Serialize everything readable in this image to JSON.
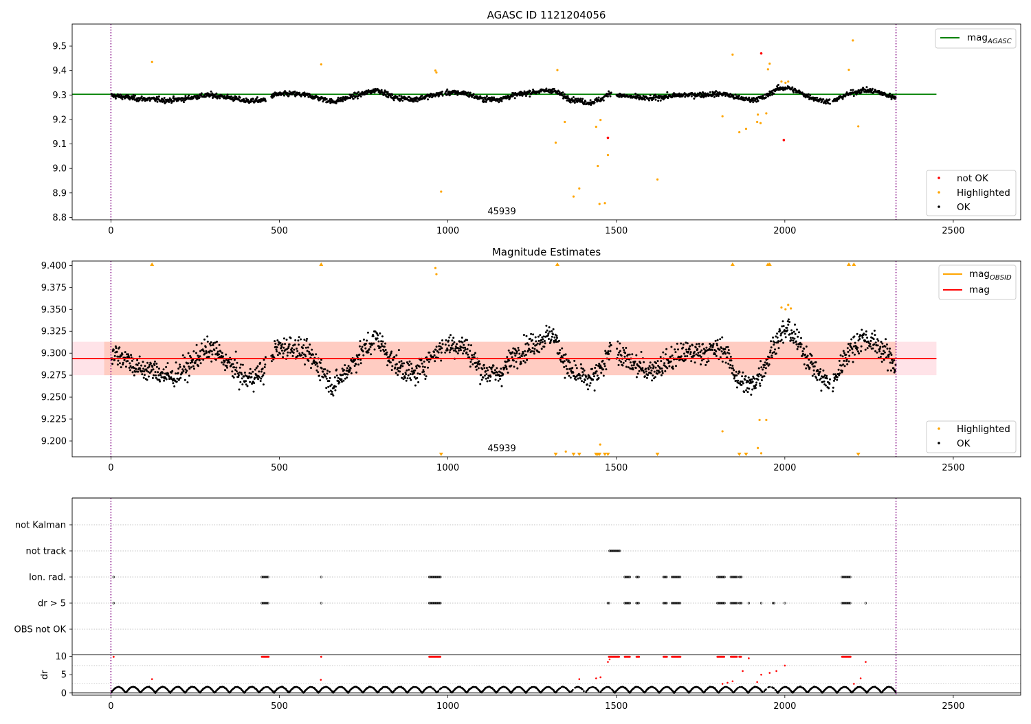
{
  "colors": {
    "ok": "#000000",
    "highlighted": "#ffa500",
    "not_ok": "#ff0000",
    "mag_agasc": "#008000",
    "mag_obsid": "#ffa500",
    "mag": "#ff0000",
    "obsid_boundary": "#800080",
    "band_pink": "#ffc0cb",
    "band_orange": "#ffa07a"
  },
  "obsid_label": "45939",
  "chart_data": [
    {
      "type": "scatter",
      "title": "AGASC ID 1121204056",
      "xlim": [
        -115,
        2700
      ],
      "ylim": [
        8.79,
        9.59
      ],
      "x_ticks": [
        0,
        500,
        1000,
        1500,
        2000,
        2500
      ],
      "y_ticks": [
        8.8,
        8.9,
        9.0,
        9.1,
        9.2,
        9.3,
        9.4,
        9.5
      ],
      "obsid_boundaries": [
        0,
        2330
      ],
      "hlines": [
        {
          "name": "mag_AGASC",
          "y": 9.303,
          "x": [
            -115,
            2450
          ],
          "color": "#008000"
        }
      ],
      "legend_lines": [
        {
          "base": "mag",
          "sub": "AGASC",
          "color": "#008000"
        }
      ],
      "legend_points": [
        {
          "label": "not OK",
          "color": "#ff0000"
        },
        {
          "label": "Highlighted",
          "color": "#ffa500"
        },
        {
          "label": "OK",
          "color": "#000000"
        }
      ],
      "annotation": "45939",
      "ok_trend": [
        [
          0,
          9.298
        ],
        [
          40,
          9.292
        ],
        [
          80,
          9.285
        ],
        [
          120,
          9.283
        ],
        [
          170,
          9.278
        ],
        [
          220,
          9.285
        ],
        [
          260,
          9.295
        ],
        [
          300,
          9.3
        ],
        [
          350,
          9.29
        ],
        [
          400,
          9.276
        ],
        [
          450,
          9.278
        ],
        [
          490,
          9.302
        ],
        [
          540,
          9.305
        ],
        [
          580,
          9.3
        ],
        [
          620,
          9.287
        ],
        [
          660,
          9.272
        ],
        [
          700,
          9.288
        ],
        [
          740,
          9.302
        ],
        [
          790,
          9.322
        ],
        [
          840,
          9.29
        ],
        [
          900,
          9.282
        ],
        [
          960,
          9.3
        ],
        [
          1000,
          9.31
        ],
        [
          1050,
          9.308
        ],
        [
          1100,
          9.284
        ],
        [
          1150,
          9.282
        ],
        [
          1200,
          9.3
        ],
        [
          1250,
          9.312
        ],
        [
          1310,
          9.32
        ],
        [
          1360,
          9.285
        ],
        [
          1420,
          9.268
        ],
        [
          1460,
          9.285
        ],
        [
          1480,
          9.31
        ],
        [
          1500,
          9.3
        ],
        [
          1560,
          9.29
        ],
        [
          1600,
          9.285
        ],
        [
          1650,
          9.295
        ],
        [
          1700,
          9.3
        ],
        [
          1760,
          9.302
        ],
        [
          1820,
          9.305
        ],
        [
          1860,
          9.288
        ],
        [
          1900,
          9.28
        ],
        [
          1940,
          9.29
        ],
        [
          1975,
          9.325
        ],
        [
          2010,
          9.33
        ],
        [
          2060,
          9.3
        ],
        [
          2100,
          9.28
        ],
        [
          2140,
          9.272
        ],
        [
          2180,
          9.3
        ],
        [
          2230,
          9.32
        ],
        [
          2270,
          9.315
        ],
        [
          2300,
          9.3
        ],
        [
          2330,
          9.29
        ]
      ],
      "highlighted_points": [
        [
          122,
          9.435
        ],
        [
          624,
          9.425
        ],
        [
          963,
          9.4
        ],
        [
          966,
          9.392
        ],
        [
          980,
          8.905
        ],
        [
          1320,
          9.105
        ],
        [
          1325,
          9.402
        ],
        [
          1347,
          9.19
        ],
        [
          1373,
          8.885
        ],
        [
          1390,
          8.918
        ],
        [
          1440,
          9.17
        ],
        [
          1445,
          9.01
        ],
        [
          1450,
          8.855
        ],
        [
          1453,
          9.198
        ],
        [
          1466,
          8.858
        ],
        [
          1475,
          9.055
        ],
        [
          1622,
          8.955
        ],
        [
          1815,
          9.213
        ],
        [
          1845,
          9.465
        ],
        [
          1865,
          9.148
        ],
        [
          1885,
          9.162
        ],
        [
          1918,
          9.19
        ],
        [
          1920,
          9.22
        ],
        [
          1928,
          9.185
        ],
        [
          1945,
          9.225
        ],
        [
          1950,
          9.405
        ],
        [
          1955,
          9.428
        ],
        [
          1990,
          9.355
        ],
        [
          2002,
          9.35
        ],
        [
          2010,
          9.355
        ],
        [
          2190,
          9.403
        ],
        [
          2202,
          9.523
        ],
        [
          2218,
          9.172
        ]
      ],
      "not_ok_points": [
        [
          1475,
          9.125
        ],
        [
          1930,
          9.47
        ],
        [
          1997,
          9.116
        ]
      ]
    },
    {
      "type": "scatter",
      "title": "Magnitude Estimates",
      "xlim": [
        -115,
        2700
      ],
      "ylim": [
        9.182,
        9.405
      ],
      "x_ticks": [
        0,
        500,
        1000,
        1500,
        2000,
        2500
      ],
      "y_ticks": [
        9.2,
        9.225,
        9.25,
        9.275,
        9.3,
        9.325,
        9.35,
        9.375,
        9.4
      ],
      "obsid_boundaries": [
        0,
        2330
      ],
      "hlines": [
        {
          "name": "mag",
          "y": 9.294,
          "x": [
            -115,
            2450
          ],
          "color": "#ff0000"
        }
      ],
      "bands": [
        {
          "y": [
            9.275,
            9.313
          ],
          "x": [
            -115,
            2450
          ],
          "color": "#ffc0cb"
        },
        {
          "y": [
            9.275,
            9.313
          ],
          "x": [
            -20,
            2330
          ],
          "color": "#ffa07a"
        }
      ],
      "legend_lines": [
        {
          "base": "mag",
          "sub": "OBSID",
          "color": "#ffa500"
        },
        {
          "base": "mag",
          "sub": "",
          "color": "#ff0000"
        }
      ],
      "legend_points": [
        {
          "label": "Highlighted",
          "color": "#ffa500"
        },
        {
          "label": "OK",
          "color": "#000000"
        }
      ],
      "annotation": "45939",
      "ok_trend": [
        [
          0,
          9.3
        ],
        [
          40,
          9.296
        ],
        [
          80,
          9.282
        ],
        [
          130,
          9.28
        ],
        [
          180,
          9.272
        ],
        [
          230,
          9.285
        ],
        [
          270,
          9.3
        ],
        [
          300,
          9.305
        ],
        [
          350,
          9.288
        ],
        [
          400,
          9.27
        ],
        [
          450,
          9.278
        ],
        [
          490,
          9.305
        ],
        [
          540,
          9.308
        ],
        [
          580,
          9.3
        ],
        [
          620,
          9.285
        ],
        [
          660,
          9.262
        ],
        [
          700,
          9.28
        ],
        [
          740,
          9.3
        ],
        [
          790,
          9.318
        ],
        [
          840,
          9.288
        ],
        [
          900,
          9.275
        ],
        [
          960,
          9.3
        ],
        [
          1000,
          9.31
        ],
        [
          1050,
          9.308
        ],
        [
          1100,
          9.28
        ],
        [
          1150,
          9.275
        ],
        [
          1200,
          9.298
        ],
        [
          1250,
          9.31
        ],
        [
          1310,
          9.322
        ],
        [
          1360,
          9.28
        ],
        [
          1420,
          9.268
        ],
        [
          1460,
          9.282
        ],
        [
          1480,
          9.31
        ],
        [
          1500,
          9.3
        ],
        [
          1560,
          9.285
        ],
        [
          1600,
          9.28
        ],
        [
          1650,
          9.29
        ],
        [
          1700,
          9.3
        ],
        [
          1760,
          9.302
        ],
        [
          1820,
          9.305
        ],
        [
          1860,
          9.27
        ],
        [
          1900,
          9.262
        ],
        [
          1940,
          9.285
        ],
        [
          1975,
          9.315
        ],
        [
          2010,
          9.328
        ],
        [
          2060,
          9.3
        ],
        [
          2100,
          9.275
        ],
        [
          2140,
          9.262
        ],
        [
          2180,
          9.298
        ],
        [
          2230,
          9.318
        ],
        [
          2270,
          9.31
        ],
        [
          2300,
          9.3
        ],
        [
          2330,
          9.285
        ]
      ],
      "highlighted_points": [
        [
          963,
          9.397
        ],
        [
          966,
          9.39
        ],
        [
          1350,
          9.188
        ],
        [
          1452,
          9.196
        ],
        [
          1815,
          9.211
        ],
        [
          1920,
          9.192
        ],
        [
          1925,
          9.224
        ],
        [
          1930,
          9.186
        ],
        [
          1945,
          9.224
        ],
        [
          1990,
          9.352
        ],
        [
          2002,
          9.35
        ],
        [
          2010,
          9.355
        ],
        [
          2018,
          9.351
        ]
      ],
      "highlighted_above": [
        122,
        624,
        1325,
        1845,
        1950,
        1955,
        2190,
        2205
      ],
      "highlighted_below": [
        980,
        1320,
        1373,
        1390,
        1440,
        1445,
        1450,
        1466,
        1475,
        1622,
        1865,
        1885,
        2218
      ]
    },
    {
      "type": "scatter",
      "title": "",
      "xlim": [
        -115,
        2700
      ],
      "x_ticks": [
        0,
        500,
        1000,
        1500,
        2000,
        2500
      ],
      "obsid_boundaries": [
        0,
        2330
      ],
      "flag_rows": [
        "not Kalman",
        "not track",
        "Ion. rad.",
        "dr > 5",
        "OBS not OK"
      ],
      "flags": {
        "not track": [
          [
            1480,
            1510
          ]
        ],
        "Ion. rad.": [
          [
            8,
            8
          ],
          [
            448,
            468
          ],
          [
            624,
            624
          ],
          [
            945,
            978
          ],
          [
            1525,
            1540
          ],
          [
            1560,
            1568
          ],
          [
            1640,
            1650
          ],
          [
            1665,
            1690
          ],
          [
            1800,
            1822
          ],
          [
            1840,
            1858
          ],
          [
            1865,
            1872
          ],
          [
            2170,
            2195
          ]
        ],
        "dr > 5": [
          [
            8,
            8
          ],
          [
            448,
            468
          ],
          [
            624,
            624
          ],
          [
            945,
            978
          ],
          [
            1475,
            1478
          ],
          [
            1525,
            1540
          ],
          [
            1560,
            1568
          ],
          [
            1640,
            1650
          ],
          [
            1665,
            1690
          ],
          [
            1800,
            1822
          ],
          [
            1840,
            1858
          ],
          [
            1865,
            1872
          ],
          [
            1893,
            1895
          ],
          [
            1930,
            1932
          ],
          [
            1965,
            1968
          ],
          [
            2000,
            2002
          ],
          [
            2170,
            2195
          ],
          [
            2240,
            2242
          ]
        ]
      }
    },
    {
      "type": "scatter",
      "title": "",
      "xlim": [
        -115,
        2700
      ],
      "ylim": [
        -0.6,
        10.5
      ],
      "ylabel": "dr",
      "y_ticks": [
        0,
        5,
        10
      ],
      "x_ticks": [
        0,
        500,
        1000,
        1500,
        2000,
        2500
      ],
      "obsid_boundaries": [
        0,
        2330
      ],
      "flag_ranges": [
        [
          8,
          8
        ],
        [
          448,
          468
        ],
        [
          624,
          624
        ],
        [
          945,
          978
        ],
        [
          1478,
          1510
        ],
        [
          1525,
          1540
        ],
        [
          1560,
          1568
        ],
        [
          1640,
          1650
        ],
        [
          1665,
          1690
        ],
        [
          1800,
          1822
        ],
        [
          1840,
          1858
        ],
        [
          1865,
          1872
        ],
        [
          2170,
          2195
        ]
      ],
      "red_points": [
        [
          122,
          3.8
        ],
        [
          623,
          3.6
        ],
        [
          1390,
          3.8
        ],
        [
          1440,
          4.0
        ],
        [
          1453,
          4.3
        ],
        [
          1475,
          8.5
        ],
        [
          1480,
          9.2
        ],
        [
          1815,
          2.5
        ],
        [
          1830,
          2.8
        ],
        [
          1845,
          3.2
        ],
        [
          1875,
          6.0
        ],
        [
          1893,
          9.5
        ],
        [
          1918,
          3.0
        ],
        [
          1930,
          5.0
        ],
        [
          1955,
          5.5
        ],
        [
          1975,
          6.0
        ],
        [
          2000,
          7.5
        ],
        [
          2205,
          2.5
        ],
        [
          2225,
          4.0
        ],
        [
          2240,
          8.5
        ]
      ],
      "gaps": [
        [
          455,
          470
        ],
        [
          625,
          632
        ],
        [
          950,
          985
        ],
        [
          1330,
          1490
        ],
        [
          1815,
          1880
        ],
        [
          1930,
          1990
        ],
        [
          2185,
          2200
        ]
      ]
    }
  ]
}
